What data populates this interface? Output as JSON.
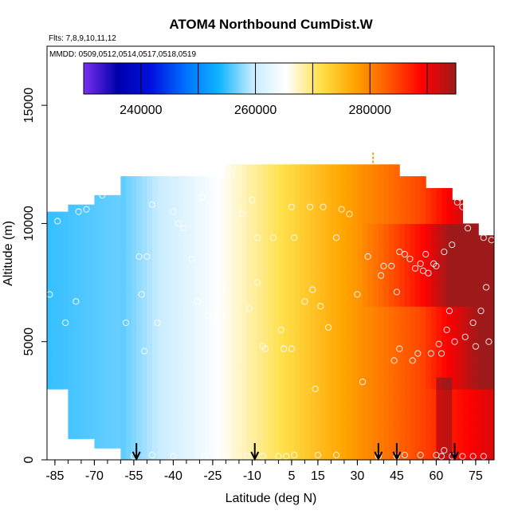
{
  "chart_data": {
    "type": "heatmap",
    "title": "ATOM4 Northbound CumDist.W",
    "subtitle_flights": "Flts: 7,8,9,10,11,12",
    "subtitle_dates": "MMDD: 0509,0512,0514,0517,0518,0519",
    "xlabel": "Latitude (deg N)",
    "ylabel": "Altitude (m)",
    "xlim": [
      -88,
      82
    ],
    "ylim": [
      0,
      17500
    ],
    "x_ticks": [
      -85,
      -70,
      -55,
      -40,
      -25,
      -10,
      5,
      15,
      30,
      45,
      60,
      75
    ],
    "x_tick_labels": [
      "-85",
      "-70",
      "-55",
      "-40",
      "-25",
      "-10",
      "5",
      "15",
      "30",
      "45",
      "60",
      "75"
    ],
    "y_ticks": [
      0,
      5000,
      10000,
      15000
    ],
    "y_tick_labels": [
      "0",
      "5000",
      "10000",
      "15000"
    ],
    "colorbar": {
      "range": [
        230000,
        295000
      ],
      "ticks": [
        240000,
        260000,
        280000
      ],
      "tick_labels": [
        "240000",
        "260000",
        "280000"
      ],
      "divisions": [
        250000,
        270000,
        290000
      ],
      "colors": [
        "#7a2ff0",
        "#0000aa",
        "#0010e0",
        "#0070ff",
        "#10b4ff",
        "#c8ecff",
        "#ffffff",
        "#ffe04a",
        "#ffa500",
        "#ff5a00",
        "#ff0000",
        "#9e1a1a"
      ]
    },
    "coverage": [
      {
        "lat_min": -88,
        "lat_max": -80,
        "alt_min": 3000,
        "alt_max": 10500
      },
      {
        "lat_min": -80,
        "lat_max": -70,
        "alt_min": 900,
        "alt_max": 10800
      },
      {
        "lat_min": -70,
        "lat_max": -60,
        "alt_min": 500,
        "alt_max": 11200
      },
      {
        "lat_min": -60,
        "lat_max": -20,
        "alt_min": 0,
        "alt_max": 12000
      },
      {
        "lat_min": -20,
        "lat_max": 46,
        "alt_min": 0,
        "alt_max": 12500
      },
      {
        "lat_min": 46,
        "lat_max": 56,
        "alt_min": 0,
        "alt_max": 12000
      },
      {
        "lat_min": 56,
        "lat_max": 66,
        "alt_min": 0,
        "alt_max": 11500
      },
      {
        "lat_min": 66,
        "lat_max": 70,
        "alt_min": 0,
        "alt_max": 11000
      },
      {
        "lat_min": 70,
        "lat_max": 76,
        "alt_min": 0,
        "alt_max": 10000
      },
      {
        "lat_min": 76,
        "lat_max": 82,
        "alt_min": 0,
        "alt_max": 9500
      }
    ],
    "tropopause_marker": {
      "lat": 36,
      "alt_min": 12500,
      "alt_max": 13000
    },
    "profile_arrows_lat": [
      -54,
      -9,
      38,
      45,
      67
    ],
    "samples": [
      {
        "lat": -84,
        "alt": 10100
      },
      {
        "lat": -87,
        "alt": 7000
      },
      {
        "lat": -81,
        "alt": 5800
      },
      {
        "lat": -77,
        "alt": 6700
      },
      {
        "lat": -76,
        "alt": 10500
      },
      {
        "lat": -73,
        "alt": 10600
      },
      {
        "lat": -67,
        "alt": 11200
      },
      {
        "lat": -62,
        "alt": 11400
      },
      {
        "lat": -58,
        "alt": 5800
      },
      {
        "lat": -53,
        "alt": 8600
      },
      {
        "lat": -50,
        "alt": 8600
      },
      {
        "lat": -48,
        "alt": 10800
      },
      {
        "lat": -52,
        "alt": 7000
      },
      {
        "lat": -51,
        "alt": 4600
      },
      {
        "lat": -46,
        "alt": 5800
      },
      {
        "lat": -40,
        "alt": 10500
      },
      {
        "lat": -38,
        "alt": 10000
      },
      {
        "lat": -36,
        "alt": 9800
      },
      {
        "lat": -33,
        "alt": 8500
      },
      {
        "lat": -31,
        "alt": 6700
      },
      {
        "lat": -29,
        "alt": 11100
      },
      {
        "lat": -27,
        "alt": 6100
      },
      {
        "lat": -24,
        "alt": 6000
      },
      {
        "lat": -21,
        "alt": 7300
      },
      {
        "lat": -18,
        "alt": 12100
      },
      {
        "lat": -14,
        "alt": 10400
      },
      {
        "lat": -11,
        "alt": 6400
      },
      {
        "lat": -10,
        "alt": 11000
      },
      {
        "lat": -8,
        "alt": 7500
      },
      {
        "lat": -8,
        "alt": 9400
      },
      {
        "lat": -6,
        "alt": 4800
      },
      {
        "lat": -5,
        "alt": 4700
      },
      {
        "lat": -2,
        "alt": 9400
      },
      {
        "lat": 1,
        "alt": 5500
      },
      {
        "lat": 2,
        "alt": 4700
      },
      {
        "lat": 5,
        "alt": 10700
      },
      {
        "lat": 6,
        "alt": 9400
      },
      {
        "lat": 5,
        "alt": 4700
      },
      {
        "lat": 10,
        "alt": 6700
      },
      {
        "lat": 12,
        "alt": 10700
      },
      {
        "lat": 13,
        "alt": 7200
      },
      {
        "lat": 14,
        "alt": 3000
      },
      {
        "lat": 16,
        "alt": 6500
      },
      {
        "lat": 17,
        "alt": 10700
      },
      {
        "lat": 19,
        "alt": 5600
      },
      {
        "lat": 22,
        "alt": 9400
      },
      {
        "lat": 24,
        "alt": 10600
      },
      {
        "lat": 27,
        "alt": 10400
      },
      {
        "lat": 30,
        "alt": 7000
      },
      {
        "lat": 32,
        "alt": 3300
      },
      {
        "lat": 34,
        "alt": 8600
      },
      {
        "lat": 39,
        "alt": 7800
      },
      {
        "lat": 40,
        "alt": 8200
      },
      {
        "lat": 43,
        "alt": 8200
      },
      {
        "lat": 45,
        "alt": 7100
      },
      {
        "lat": 44,
        "alt": 4200
      },
      {
        "lat": 46,
        "alt": 4700
      },
      {
        "lat": 46,
        "alt": 8800
      },
      {
        "lat": 48,
        "alt": 8700
      },
      {
        "lat": 50,
        "alt": 8500
      },
      {
        "lat": 51,
        "alt": 4200
      },
      {
        "lat": 52,
        "alt": 8100
      },
      {
        "lat": 53,
        "alt": 4500
      },
      {
        "lat": 54,
        "alt": 8300
      },
      {
        "lat": 55,
        "alt": 8000
      },
      {
        "lat": 56,
        "alt": 8700
      },
      {
        "lat": 57,
        "alt": 7900
      },
      {
        "lat": 58,
        "alt": 4500
      },
      {
        "lat": 59,
        "alt": 8300
      },
      {
        "lat": 60,
        "alt": 8200
      },
      {
        "lat": 61,
        "alt": 4900
      },
      {
        "lat": 62,
        "alt": 4500
      },
      {
        "lat": 63,
        "alt": 8800
      },
      {
        "lat": 64,
        "alt": 5500
      },
      {
        "lat": 65,
        "alt": 6300
      },
      {
        "lat": 66,
        "alt": 9100
      },
      {
        "lat": 67,
        "alt": 5000
      },
      {
        "lat": 68,
        "alt": 10900
      },
      {
        "lat": 69,
        "alt": 11100
      },
      {
        "lat": 70,
        "alt": 10700
      },
      {
        "lat": 71,
        "alt": 5200
      },
      {
        "lat": 72,
        "alt": 9800
      },
      {
        "lat": 74,
        "alt": 5800
      },
      {
        "lat": 75,
        "alt": 4800
      },
      {
        "lat": 77,
        "alt": 6300
      },
      {
        "lat": 78,
        "alt": 9400
      },
      {
        "lat": 79,
        "alt": 7300
      },
      {
        "lat": 80,
        "alt": 5000
      },
      {
        "lat": 81,
        "alt": 9300
      },
      {
        "lat": -55,
        "alt": 150
      },
      {
        "lat": -48,
        "alt": 200
      },
      {
        "lat": -40,
        "alt": 150
      },
      {
        "lat": -28,
        "alt": 150
      },
      {
        "lat": -20,
        "alt": 150
      },
      {
        "lat": -12,
        "alt": 150
      },
      {
        "lat": -6,
        "alt": 150
      },
      {
        "lat": 0,
        "alt": 150
      },
      {
        "lat": 3,
        "alt": 150
      },
      {
        "lat": 6,
        "alt": 200
      },
      {
        "lat": 15,
        "alt": 200
      },
      {
        "lat": 22,
        "alt": 200
      },
      {
        "lat": 38,
        "alt": 150
      },
      {
        "lat": 45,
        "alt": 150
      },
      {
        "lat": 48,
        "alt": 200
      },
      {
        "lat": 54,
        "alt": 200
      },
      {
        "lat": 60,
        "alt": 200
      },
      {
        "lat": 62,
        "alt": 150
      },
      {
        "lat": 63,
        "alt": 400
      },
      {
        "lat": 66,
        "alt": 150
      },
      {
        "lat": 70,
        "alt": 150
      },
      {
        "lat": 74,
        "alt": 150
      },
      {
        "lat": 78,
        "alt": 150
      }
    ]
  }
}
